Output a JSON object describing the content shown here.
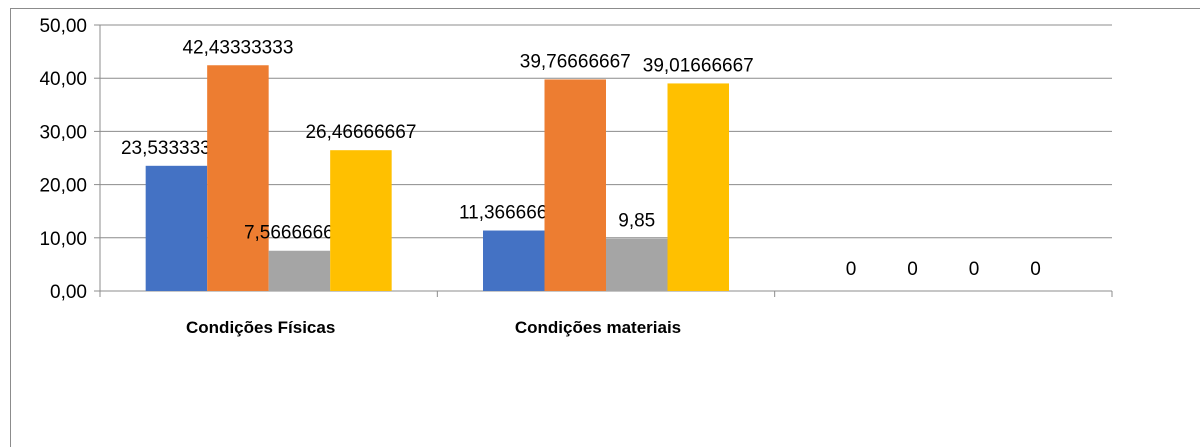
{
  "chart_data": {
    "type": "bar",
    "title": "",
    "xlabel": "",
    "ylabel": "",
    "ylim": [
      0,
      50
    ],
    "y_ticks": [
      "0,00",
      "10,00",
      "20,00",
      "30,00",
      "40,00",
      "50,00"
    ],
    "grid": true,
    "legend": "none",
    "categories": [
      "Condições Físicas",
      "Condições materiais",
      ""
    ],
    "series": [
      {
        "color": "#4472C4",
        "values": [
          23.53333333,
          11.36666667,
          0
        ],
        "labels": [
          "23,53333333",
          "11,36666667",
          "0"
        ]
      },
      {
        "color": "#ED7D31",
        "values": [
          42.43333333,
          39.76666667,
          0
        ],
        "labels": [
          "42,43333333",
          "39,76666667",
          "0"
        ]
      },
      {
        "color": "#A5A5A5",
        "values": [
          7.566666667,
          9.85,
          0
        ],
        "labels": [
          "7,566666667",
          "9,85",
          "0"
        ]
      },
      {
        "color": "#FFC000",
        "values": [
          26.46666667,
          39.01666667,
          0
        ],
        "labels": [
          "26,46666667",
          "39,01666667",
          "0"
        ]
      }
    ]
  }
}
